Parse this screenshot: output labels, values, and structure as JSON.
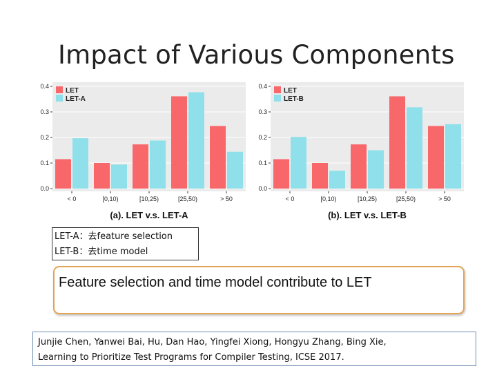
{
  "slide": {
    "title": "Impact of Various Components"
  },
  "definitions": {
    "line1": "LET-A：去feature  selection",
    "line2": "LET-B：去time  model"
  },
  "conclusion": {
    "text": "Feature selection and time model contribute to LET"
  },
  "reference": {
    "line1": "Junjie Chen, Yanwei  Bai, Hu, Dan Hao, Yingfei Xiong, Hongyu Zhang, Bing Xie,",
    "line2": "Learning to Prioritize Test Programs for Compiler Testing, ICSE 2017."
  },
  "colors": {
    "let": "#f8686a",
    "variant": "#8fe0ea",
    "panel": "#ebebeb",
    "grid": "#ffffff"
  },
  "chart_data": [
    {
      "type": "bar",
      "caption": "(a). LET v.s. LET-A",
      "categories": [
        "< 0",
        "[0,10)",
        "[10,25)",
        "[25,50)",
        "> 50"
      ],
      "yticks": [
        "0.0",
        "0.1",
        "0.2",
        "0.3",
        "0.4"
      ],
      "ylim": [
        0,
        0.4
      ],
      "legend_position": "top-left",
      "series": [
        {
          "name": "LET",
          "values": [
            0.115,
            0.1,
            0.173,
            0.361,
            0.245
          ]
        },
        {
          "name": "LET-A",
          "values": [
            0.197,
            0.094,
            0.188,
            0.377,
            0.144
          ]
        }
      ]
    },
    {
      "type": "bar",
      "caption": "(b). LET v.s. LET-B",
      "categories": [
        "< 0",
        "[0,10)",
        "[10,25)",
        "[25,50)",
        "> 50"
      ],
      "yticks": [
        "0.0",
        "0.1",
        "0.2",
        "0.3",
        "0.4"
      ],
      "ylim": [
        0,
        0.4
      ],
      "legend_position": "top-left",
      "series": [
        {
          "name": "LET",
          "values": [
            0.115,
            0.1,
            0.173,
            0.361,
            0.245
          ]
        },
        {
          "name": "LET-B",
          "values": [
            0.202,
            0.07,
            0.15,
            0.318,
            0.252
          ]
        }
      ]
    }
  ]
}
